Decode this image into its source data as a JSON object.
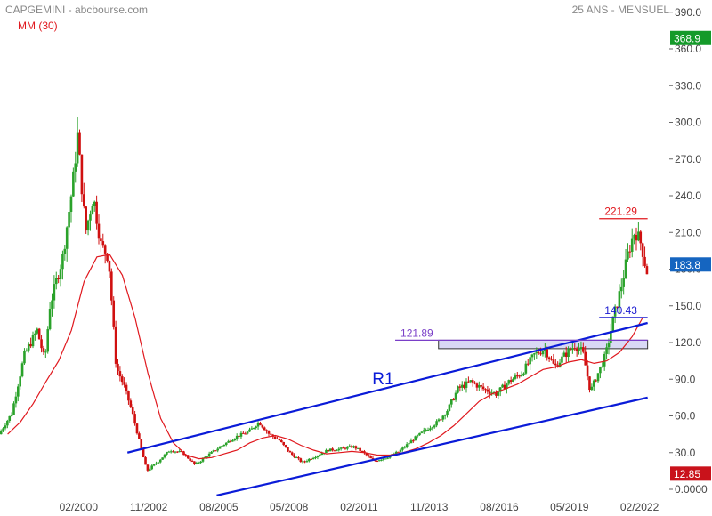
{
  "header": {
    "title": "CAPGEMINI - abcbourse.com",
    "period": "25 ANS - MENSUEL",
    "ma_label": "MM (30)"
  },
  "chart_data": {
    "type": "candlestick",
    "title": "CAPGEMINI - abcbourse.com",
    "ylim": [
      0,
      400
    ],
    "y_ticks": [
      0,
      30,
      60,
      90,
      120,
      150,
      180,
      210,
      240,
      270,
      300,
      330,
      360,
      390
    ],
    "y_tick_labels": [
      "0.0000",
      "30.0",
      "60.0",
      "90.0",
      "120.0",
      "150.0",
      "180.0",
      "210.0",
      "240.0",
      "270.0",
      "300.0",
      "330.0",
      "360.0",
      "390.0"
    ],
    "x_tick_labels": [
      "02/2000",
      "11/2002",
      "08/2005",
      "05/2008",
      "02/2011",
      "11/2013",
      "08/2016",
      "05/2019",
      "02/2022"
    ],
    "x_tick_dates": [
      2000.083,
      2002.833,
      2005.583,
      2008.333,
      2011.083,
      2013.833,
      2016.583,
      2019.333,
      2022.083
    ],
    "xlim": [
      1997.0,
      2023.25
    ],
    "price_path": [
      [
        1997.0,
        45
      ],
      [
        1997.5,
        62
      ],
      [
        1998.0,
        110
      ],
      [
        1998.5,
        130
      ],
      [
        1998.8,
        105
      ],
      [
        1999.0,
        150
      ],
      [
        1999.5,
        190
      ],
      [
        1999.9,
        250
      ],
      [
        2000.08,
        290
      ],
      [
        2000.4,
        210
      ],
      [
        2000.7,
        240
      ],
      [
        2001.0,
        200
      ],
      [
        2001.3,
        190
      ],
      [
        2001.6,
        100
      ],
      [
        2001.9,
        85
      ],
      [
        2002.2,
        65
      ],
      [
        2002.5,
        40
      ],
      [
        2002.8,
        15
      ],
      [
        2003.2,
        22
      ],
      [
        2003.7,
        32
      ],
      [
        2004.2,
        30
      ],
      [
        2004.7,
        20
      ],
      [
        2005.2,
        28
      ],
      [
        2005.7,
        35
      ],
      [
        2006.3,
        43
      ],
      [
        2006.8,
        47
      ],
      [
        2007.2,
        55
      ],
      [
        2007.6,
        45
      ],
      [
        2008.0,
        40
      ],
      [
        2008.4,
        30
      ],
      [
        2008.9,
        22
      ],
      [
        2009.4,
        27
      ],
      [
        2009.9,
        32
      ],
      [
        2010.4,
        33
      ],
      [
        2010.9,
        35
      ],
      [
        2011.3,
        30
      ],
      [
        2011.7,
        23
      ],
      [
        2012.2,
        26
      ],
      [
        2012.7,
        31
      ],
      [
        2013.2,
        40
      ],
      [
        2013.7,
        48
      ],
      [
        2014.2,
        55
      ],
      [
        2014.6,
        65
      ],
      [
        2015.0,
        82
      ],
      [
        2015.5,
        88
      ],
      [
        2016.0,
        82
      ],
      [
        2016.5,
        78
      ],
      [
        2017.0,
        88
      ],
      [
        2017.5,
        95
      ],
      [
        2018.0,
        110
      ],
      [
        2018.4,
        115
      ],
      [
        2018.8,
        100
      ],
      [
        2019.2,
        110
      ],
      [
        2019.6,
        118
      ],
      [
        2019.9,
        112
      ],
      [
        2020.2,
        80
      ],
      [
        2020.5,
        95
      ],
      [
        2020.8,
        110
      ],
      [
        2021.1,
        140
      ],
      [
        2021.4,
        165
      ],
      [
        2021.7,
        195
      ],
      [
        2021.95,
        212
      ],
      [
        2022.2,
        200
      ],
      [
        2022.4,
        178
      ]
    ],
    "ma_path": [
      [
        1997.3,
        45
      ],
      [
        1997.8,
        55
      ],
      [
        1998.3,
        70
      ],
      [
        1998.8,
        88
      ],
      [
        1999.3,
        105
      ],
      [
        1999.8,
        130
      ],
      [
        2000.3,
        170
      ],
      [
        2000.8,
        190
      ],
      [
        2001.3,
        192
      ],
      [
        2001.8,
        175
      ],
      [
        2002.3,
        140
      ],
      [
        2002.8,
        95
      ],
      [
        2003.3,
        58
      ],
      [
        2003.8,
        38
      ],
      [
        2004.3,
        28
      ],
      [
        2004.8,
        25
      ],
      [
        2005.3,
        26
      ],
      [
        2005.8,
        29
      ],
      [
        2006.3,
        32
      ],
      [
        2006.8,
        38
      ],
      [
        2007.3,
        42
      ],
      [
        2007.8,
        44
      ],
      [
        2008.3,
        41
      ],
      [
        2008.8,
        36
      ],
      [
        2009.3,
        32
      ],
      [
        2009.8,
        29
      ],
      [
        2010.3,
        30
      ],
      [
        2010.8,
        31
      ],
      [
        2011.3,
        30
      ],
      [
        2011.8,
        28
      ],
      [
        2012.3,
        28
      ],
      [
        2012.8,
        30
      ],
      [
        2013.3,
        33
      ],
      [
        2013.8,
        38
      ],
      [
        2014.3,
        44
      ],
      [
        2014.8,
        52
      ],
      [
        2015.3,
        62
      ],
      [
        2015.8,
        72
      ],
      [
        2016.3,
        78
      ],
      [
        2016.8,
        82
      ],
      [
        2017.3,
        86
      ],
      [
        2017.8,
        92
      ],
      [
        2018.3,
        98
      ],
      [
        2018.8,
        100
      ],
      [
        2019.3,
        104
      ],
      [
        2019.8,
        106
      ],
      [
        2020.3,
        103
      ],
      [
        2020.8,
        105
      ],
      [
        2021.3,
        112
      ],
      [
        2021.8,
        125
      ],
      [
        2022.2,
        140
      ]
    ],
    "channel_lines": [
      {
        "name": "R1",
        "color": "#0a1bd8",
        "from": [
          2002.0,
          30
        ],
        "to": [
          2022.4,
          136
        ]
      },
      {
        "name": "",
        "color": "#0a1bd8",
        "from": [
          2005.5,
          -5
        ],
        "to": [
          2022.4,
          75
        ]
      }
    ],
    "annotation_text": "R1",
    "horizontal_levels": [
      {
        "value": 221.29,
        "label": "221.29",
        "color": "#e0181e",
        "from": 2020.5,
        "to": 2022.4
      },
      {
        "value": 140.43,
        "label": "140.43",
        "color": "#1a1ad0",
        "from": 2020.5,
        "to": 2022.4
      },
      {
        "value": 121.89,
        "label": "121.89",
        "color": "#7a3fc8",
        "from": 2012.5,
        "to": 2022.4
      }
    ],
    "support_zone": {
      "top": 121.89,
      "bottom": 115,
      "from": 2014.2,
      "to": 2022.4,
      "color": "#d9d9f5"
    },
    "last_price_badge": {
      "value": 183.8,
      "label": "183.8",
      "color": "#1565c0"
    },
    "high_badge": {
      "value": 368.9,
      "label": "368.9",
      "color": "#159a2a"
    },
    "low_badge": {
      "value": 12.85,
      "label": "12.85",
      "color": "#c9121b"
    },
    "up_color": "#2aa22a",
    "down_color": "#d01010",
    "ma_color": "#e0181e",
    "grid": false
  }
}
